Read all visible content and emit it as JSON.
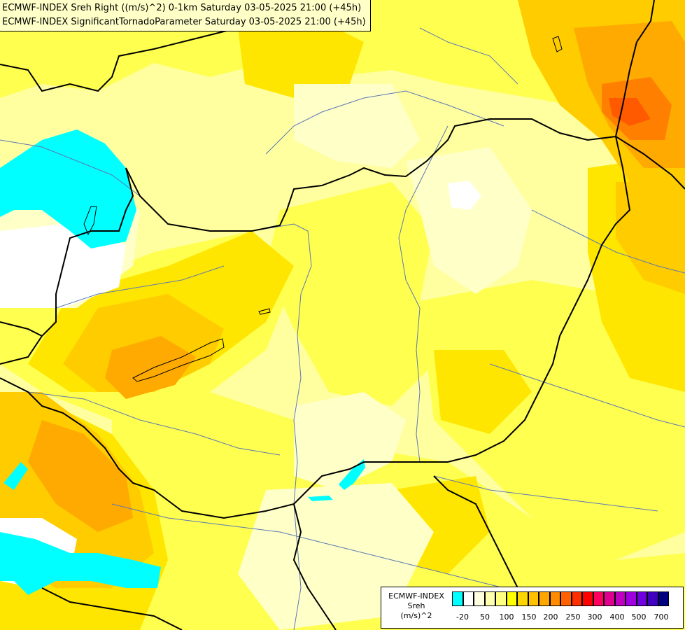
{
  "header": {
    "line1": "ECMWF-INDEX Sreh Right ((m/s)^2) 0-1km Saturday 03-05-2025 21:00 (+45h)",
    "line2": "ECMWF-INDEX SignificantTornadoParameter Saturday 03-05-2025 21:00 (+45h)"
  },
  "legend": {
    "line1": "ECMWF-INDEX",
    "line2": "Sreh",
    "line3": "(m/s)^2",
    "colors": [
      "#00ffff",
      "#ffffff",
      "#ffffe0",
      "#ffffb0",
      "#ffff80",
      "#ffff00",
      "#ffd700",
      "#ffc000",
      "#ffa500",
      "#ff8c00",
      "#ff6000",
      "#ff3000",
      "#ff0000",
      "#ff0060",
      "#e00090",
      "#c000c0",
      "#a000e0",
      "#7000e0",
      "#4000c0",
      "#000080"
    ],
    "ticks": [
      "-20",
      "50",
      "100",
      "150",
      "200",
      "250",
      "300",
      "400",
      "500",
      "700"
    ]
  },
  "colors": {
    "cyan": "#00ffff",
    "white": "#ffffff",
    "pale": "#ffffc8",
    "light_yellow": "#ffffa0",
    "yellow": "#ffff50",
    "gold": "#ffe600",
    "amber": "#ffcc00",
    "orange": "#ffaa00",
    "deep_orange": "#ff8000",
    "red_orange": "#ff5a00",
    "border": "#000000",
    "river": "#5a78b4"
  }
}
